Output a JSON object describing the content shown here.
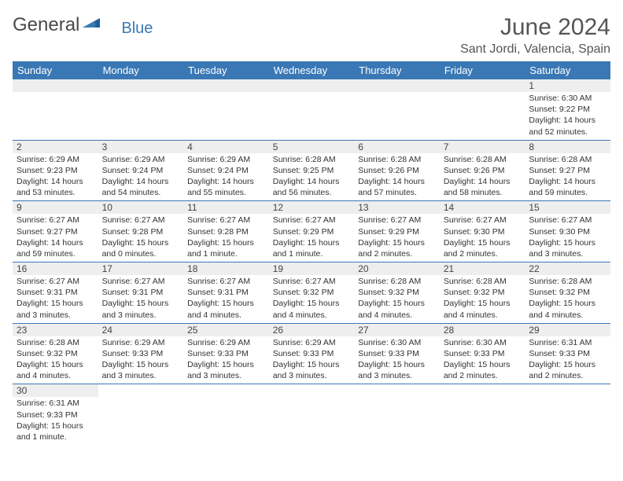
{
  "brand": {
    "text1": "General",
    "text2": "Blue"
  },
  "title": "June 2024",
  "location": "Sant Jordi, Valencia, Spain",
  "colors": {
    "header_bg": "#3a78b5",
    "header_fg": "#ffffff",
    "daynum_bg": "#eeeeee",
    "border": "#3a78b5",
    "logo_blue": "#3a78b5",
    "logo_gray": "#4a4a4a"
  },
  "weekdays": [
    "Sunday",
    "Monday",
    "Tuesday",
    "Wednesday",
    "Thursday",
    "Friday",
    "Saturday"
  ],
  "weeks": [
    [
      null,
      null,
      null,
      null,
      null,
      null,
      {
        "n": "1",
        "sunrise": "Sunrise: 6:30 AM",
        "sunset": "Sunset: 9:22 PM",
        "daylight": "Daylight: 14 hours and 52 minutes."
      }
    ],
    [
      {
        "n": "2",
        "sunrise": "Sunrise: 6:29 AM",
        "sunset": "Sunset: 9:23 PM",
        "daylight": "Daylight: 14 hours and 53 minutes."
      },
      {
        "n": "3",
        "sunrise": "Sunrise: 6:29 AM",
        "sunset": "Sunset: 9:24 PM",
        "daylight": "Daylight: 14 hours and 54 minutes."
      },
      {
        "n": "4",
        "sunrise": "Sunrise: 6:29 AM",
        "sunset": "Sunset: 9:24 PM",
        "daylight": "Daylight: 14 hours and 55 minutes."
      },
      {
        "n": "5",
        "sunrise": "Sunrise: 6:28 AM",
        "sunset": "Sunset: 9:25 PM",
        "daylight": "Daylight: 14 hours and 56 minutes."
      },
      {
        "n": "6",
        "sunrise": "Sunrise: 6:28 AM",
        "sunset": "Sunset: 9:26 PM",
        "daylight": "Daylight: 14 hours and 57 minutes."
      },
      {
        "n": "7",
        "sunrise": "Sunrise: 6:28 AM",
        "sunset": "Sunset: 9:26 PM",
        "daylight": "Daylight: 14 hours and 58 minutes."
      },
      {
        "n": "8",
        "sunrise": "Sunrise: 6:28 AM",
        "sunset": "Sunset: 9:27 PM",
        "daylight": "Daylight: 14 hours and 59 minutes."
      }
    ],
    [
      {
        "n": "9",
        "sunrise": "Sunrise: 6:27 AM",
        "sunset": "Sunset: 9:27 PM",
        "daylight": "Daylight: 14 hours and 59 minutes."
      },
      {
        "n": "10",
        "sunrise": "Sunrise: 6:27 AM",
        "sunset": "Sunset: 9:28 PM",
        "daylight": "Daylight: 15 hours and 0 minutes."
      },
      {
        "n": "11",
        "sunrise": "Sunrise: 6:27 AM",
        "sunset": "Sunset: 9:28 PM",
        "daylight": "Daylight: 15 hours and 1 minute."
      },
      {
        "n": "12",
        "sunrise": "Sunrise: 6:27 AM",
        "sunset": "Sunset: 9:29 PM",
        "daylight": "Daylight: 15 hours and 1 minute."
      },
      {
        "n": "13",
        "sunrise": "Sunrise: 6:27 AM",
        "sunset": "Sunset: 9:29 PM",
        "daylight": "Daylight: 15 hours and 2 minutes."
      },
      {
        "n": "14",
        "sunrise": "Sunrise: 6:27 AM",
        "sunset": "Sunset: 9:30 PM",
        "daylight": "Daylight: 15 hours and 2 minutes."
      },
      {
        "n": "15",
        "sunrise": "Sunrise: 6:27 AM",
        "sunset": "Sunset: 9:30 PM",
        "daylight": "Daylight: 15 hours and 3 minutes."
      }
    ],
    [
      {
        "n": "16",
        "sunrise": "Sunrise: 6:27 AM",
        "sunset": "Sunset: 9:31 PM",
        "daylight": "Daylight: 15 hours and 3 minutes."
      },
      {
        "n": "17",
        "sunrise": "Sunrise: 6:27 AM",
        "sunset": "Sunset: 9:31 PM",
        "daylight": "Daylight: 15 hours and 3 minutes."
      },
      {
        "n": "18",
        "sunrise": "Sunrise: 6:27 AM",
        "sunset": "Sunset: 9:31 PM",
        "daylight": "Daylight: 15 hours and 4 minutes."
      },
      {
        "n": "19",
        "sunrise": "Sunrise: 6:27 AM",
        "sunset": "Sunset: 9:32 PM",
        "daylight": "Daylight: 15 hours and 4 minutes."
      },
      {
        "n": "20",
        "sunrise": "Sunrise: 6:28 AM",
        "sunset": "Sunset: 9:32 PM",
        "daylight": "Daylight: 15 hours and 4 minutes."
      },
      {
        "n": "21",
        "sunrise": "Sunrise: 6:28 AM",
        "sunset": "Sunset: 9:32 PM",
        "daylight": "Daylight: 15 hours and 4 minutes."
      },
      {
        "n": "22",
        "sunrise": "Sunrise: 6:28 AM",
        "sunset": "Sunset: 9:32 PM",
        "daylight": "Daylight: 15 hours and 4 minutes."
      }
    ],
    [
      {
        "n": "23",
        "sunrise": "Sunrise: 6:28 AM",
        "sunset": "Sunset: 9:32 PM",
        "daylight": "Daylight: 15 hours and 4 minutes."
      },
      {
        "n": "24",
        "sunrise": "Sunrise: 6:29 AM",
        "sunset": "Sunset: 9:33 PM",
        "daylight": "Daylight: 15 hours and 3 minutes."
      },
      {
        "n": "25",
        "sunrise": "Sunrise: 6:29 AM",
        "sunset": "Sunset: 9:33 PM",
        "daylight": "Daylight: 15 hours and 3 minutes."
      },
      {
        "n": "26",
        "sunrise": "Sunrise: 6:29 AM",
        "sunset": "Sunset: 9:33 PM",
        "daylight": "Daylight: 15 hours and 3 minutes."
      },
      {
        "n": "27",
        "sunrise": "Sunrise: 6:30 AM",
        "sunset": "Sunset: 9:33 PM",
        "daylight": "Daylight: 15 hours and 3 minutes."
      },
      {
        "n": "28",
        "sunrise": "Sunrise: 6:30 AM",
        "sunset": "Sunset: 9:33 PM",
        "daylight": "Daylight: 15 hours and 2 minutes."
      },
      {
        "n": "29",
        "sunrise": "Sunrise: 6:31 AM",
        "sunset": "Sunset: 9:33 PM",
        "daylight": "Daylight: 15 hours and 2 minutes."
      }
    ],
    [
      {
        "n": "30",
        "sunrise": "Sunrise: 6:31 AM",
        "sunset": "Sunset: 9:33 PM",
        "daylight": "Daylight: 15 hours and 1 minute."
      },
      null,
      null,
      null,
      null,
      null,
      null
    ]
  ]
}
